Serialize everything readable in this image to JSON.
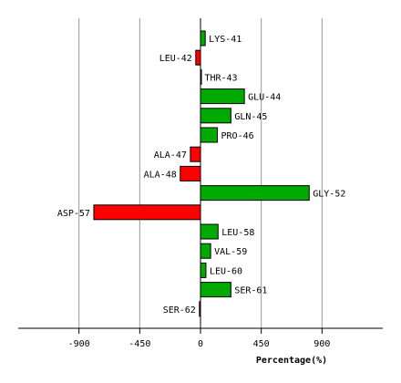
{
  "chart_data": {
    "type": "bar",
    "orientation": "horizontal",
    "title": "",
    "xlabel": "Percentage(%)",
    "ylabel": "",
    "xlim": [
      -1350,
      1350
    ],
    "xticks": [
      -900,
      -450,
      0,
      450,
      900
    ],
    "grid": true,
    "categories": [
      "LYS-41",
      "LEU-42",
      "THR-43",
      "GLU-44",
      "GLN-45",
      "PRO-46",
      "ALA-47",
      "ALA-48",
      "GLY-52",
      "ASP-57",
      "LEU-58",
      "VAL-59",
      "LEU-60",
      "SER-61",
      "SER-62"
    ],
    "values": [
      35,
      -35,
      3,
      325,
      225,
      125,
      -75,
      -150,
      805,
      -790,
      130,
      75,
      40,
      225,
      -8
    ],
    "colors": {
      "positive": "#00aa00",
      "negative": "#ff0000",
      "grid": "#999999",
      "axis": "#000000"
    }
  }
}
